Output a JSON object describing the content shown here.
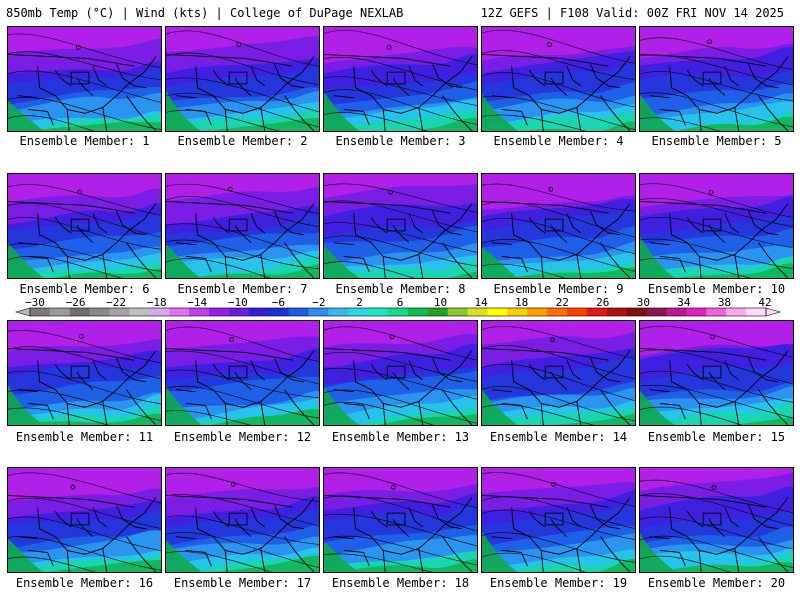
{
  "header": {
    "left": "850mb Temp (°C) | Wind (kts) | College of DuPage NEXLAB",
    "right": "12Z GEFS | F108 Valid: 00Z FRI NOV 14 2025"
  },
  "panels": [
    {
      "label": "Ensemble Member: 1"
    },
    {
      "label": "Ensemble Member: 2"
    },
    {
      "label": "Ensemble Member: 3"
    },
    {
      "label": "Ensemble Member: 4"
    },
    {
      "label": "Ensemble Member: 5"
    },
    {
      "label": "Ensemble Member: 6"
    },
    {
      "label": "Ensemble Member: 7"
    },
    {
      "label": "Ensemble Member: 8"
    },
    {
      "label": "Ensemble Member: 9"
    },
    {
      "label": "Ensemble Member: 10"
    },
    {
      "label": "Ensemble Member: 11"
    },
    {
      "label": "Ensemble Member: 12"
    },
    {
      "label": "Ensemble Member: 13"
    },
    {
      "label": "Ensemble Member: 14"
    },
    {
      "label": "Ensemble Member: 15"
    },
    {
      "label": "Ensemble Member: 16"
    },
    {
      "label": "Ensemble Member: 17"
    },
    {
      "label": "Ensemble Member: 18"
    },
    {
      "label": "Ensemble Member: 19"
    },
    {
      "label": "Ensemble Member: 20"
    }
  ],
  "colorbar": {
    "ticks": [
      "−30",
      "−26",
      "−22",
      "−18",
      "−14",
      "−10",
      "−6",
      "−2",
      "2",
      "6",
      "10",
      "14",
      "18",
      "22",
      "26",
      "30",
      "34",
      "38",
      "42"
    ],
    "colors": [
      "#7a7a7a",
      "#9a9a9a",
      "#6e6e6e",
      "#8a8a8a",
      "#a3a3a3",
      "#bfbfbf",
      "#d8a8e8",
      "#e070f0",
      "#c23ee6",
      "#9a20e6",
      "#6a20e0",
      "#3a1ce0",
      "#2030d8",
      "#1e5ae8",
      "#2e8ef0",
      "#38b6f0",
      "#2cd6e6",
      "#1ce6c0",
      "#18d890",
      "#10c050",
      "#28a028",
      "#88c830",
      "#d8e020",
      "#ffff00",
      "#ffd000",
      "#ffa000",
      "#ff7000",
      "#ff4000",
      "#e01818",
      "#b01010",
      "#801010",
      "#901050",
      "#c01890",
      "#e020c0",
      "#f060e0",
      "#f8a8f0",
      "#fcd8fa"
    ]
  }
}
